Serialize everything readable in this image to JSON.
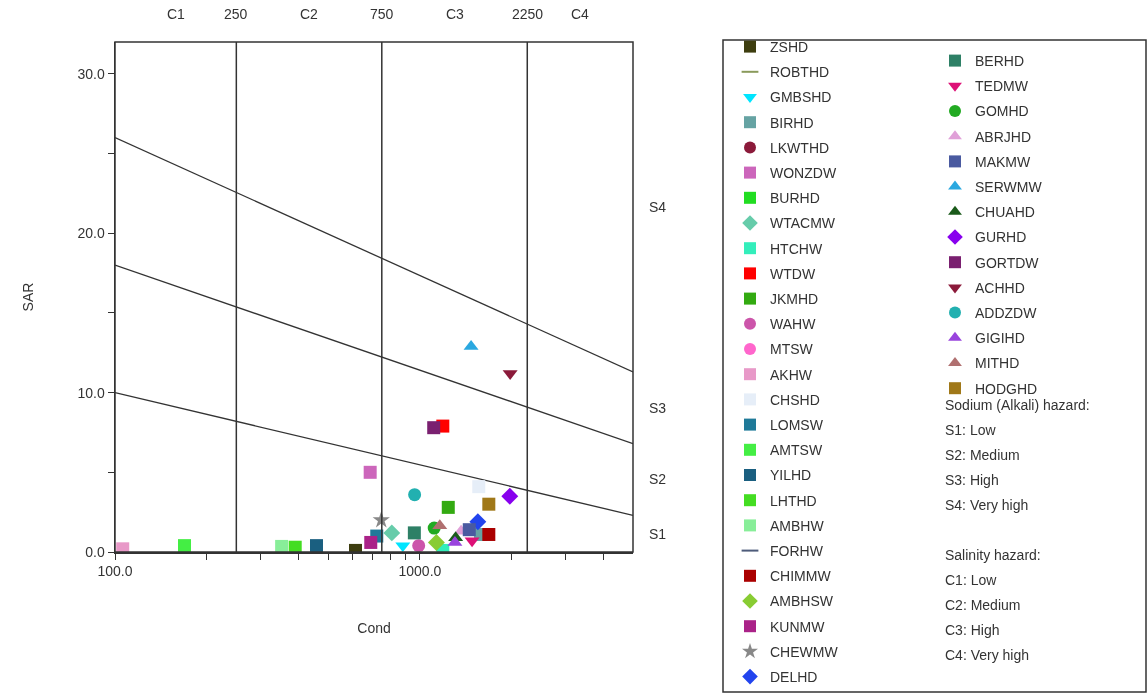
{
  "chart_data": {
    "type": "scatter",
    "xlabel": "Cond",
    "ylabel": "SAR",
    "log": "x",
    "legend": "right",
    "grid": false,
    "xlim": [
      100,
      5000
    ],
    "ylim": [
      0,
      32
    ],
    "xticks": [
      {
        "value": 100,
        "label": "100.0"
      },
      {
        "value": 200,
        "label": null
      },
      {
        "value": 300,
        "label": null
      },
      {
        "value": 400,
        "label": null
      },
      {
        "value": 500,
        "label": null
      },
      {
        "value": 600,
        "label": null
      },
      {
        "value": 700,
        "label": null
      },
      {
        "value": 800,
        "label": null
      },
      {
        "value": 900,
        "label": null
      },
      {
        "value": 1000,
        "label": "1000.0"
      },
      {
        "value": 2000,
        "label": null
      },
      {
        "value": 3000,
        "label": null
      },
      {
        "value": 4000,
        "label": null
      }
    ],
    "yticks": [
      {
        "value": 0,
        "label": "0.0"
      },
      {
        "value": 5,
        "label": null
      },
      {
        "value": 10,
        "label": "10.0"
      },
      {
        "value": 15,
        "label": null
      },
      {
        "value": 20,
        "label": "20.0"
      },
      {
        "value": 25,
        "label": null
      },
      {
        "value": 30,
        "label": "30.0"
      }
    ],
    "ref_lines": [
      {
        "axis": "x",
        "value": 250,
        "label": "250",
        "color": "#333333"
      },
      {
        "axis": "x",
        "value": 750,
        "label": "750",
        "color": "#333333"
      },
      {
        "axis": "x",
        "value": 2250,
        "label": "2250",
        "color": "#333333"
      }
    ],
    "annotations": [
      "C1",
      "C2",
      "C3",
      "C4",
      "S1",
      "S2",
      "S3",
      "S4",
      "Sodium (Alkali) hazard:",
      "S1: Low",
      "S2: Medium",
      "S3: High",
      "S4: Very high",
      "Salinity hazard:",
      "C1: Low",
      "C2: Medium",
      "C3: High",
      "C4: Very high"
    ],
    "series": [
      {
        "type": "line",
        "color": "#333333",
        "x": [
          100,
          5000
        ],
        "values": [
          10,
          2.3
        ]
      },
      {
        "type": "line",
        "color": "#333333",
        "x": [
          100,
          5000
        ],
        "values": [
          18,
          6.8
        ]
      },
      {
        "type": "line",
        "color": "#333333",
        "x": [
          100,
          5000
        ],
        "values": [
          26,
          11.3
        ]
      },
      {
        "name": "ZSHD",
        "color": "#3d3d0f",
        "marker": "square",
        "x": [
          615
        ],
        "values": [
          0.1
        ]
      },
      {
        "name": "ROBTHD",
        "color": "#8a9a5b",
        "marker": "dash",
        "x": [
          null
        ],
        "values": [
          null
        ]
      },
      {
        "name": "GMBSHD",
        "color": "#00e5ff",
        "marker": "triangle-down",
        "x": [
          879
        ],
        "values": [
          0.4
        ]
      },
      {
        "name": "BIRHD",
        "color": "#66a3a3",
        "marker": "square",
        "x": [
          1580
        ],
        "values": [
          1.1
        ]
      },
      {
        "name": "LKWTHD",
        "color": "#8b1a3a",
        "marker": "circle",
        "x": [
          null
        ],
        "values": [
          null
        ]
      },
      {
        "name": "WONZDW",
        "color": "#cc66bb",
        "marker": "square",
        "x": [
          687
        ],
        "values": [
          5
        ]
      },
      {
        "name": "BURHD",
        "color": "#22dd22",
        "marker": "square",
        "x": [
          null
        ],
        "values": [
          null
        ]
      },
      {
        "name": "WTACMW",
        "color": "#66ccaa",
        "marker": "diamond",
        "x": [
          809
        ],
        "values": [
          1.2
        ]
      },
      {
        "name": "HTCHW",
        "color": "#33eebb",
        "marker": "square",
        "x": [
          1189
        ],
        "values": [
          0.1
        ]
      },
      {
        "name": "WTDW",
        "color": "#ff0000",
        "marker": "square",
        "x": [
          1189
        ],
        "values": [
          7.9
        ]
      },
      {
        "name": "JKMHD",
        "color": "#33aa11",
        "marker": "square",
        "x": [
          1239
        ],
        "values": [
          2.8
        ]
      },
      {
        "name": "WAHW",
        "color": "#cc55aa",
        "marker": "circle",
        "x": [
          991
        ],
        "values": [
          0.4
        ]
      },
      {
        "name": "MTSW",
        "color": "#ff66cc",
        "marker": "circle",
        "x": [
          null
        ],
        "values": [
          null
        ]
      },
      {
        "name": "AKHW",
        "color": "#e899c8",
        "marker": "square",
        "x": [
          106
        ],
        "values": [
          0.2
        ]
      },
      {
        "name": "CHSHD",
        "color": "#e6eef8",
        "marker": "square",
        "x": [
          1560
        ],
        "values": [
          4.1
        ]
      },
      {
        "name": "LOMSW",
        "color": "#1f7a99",
        "marker": "square",
        "x": [
          722
        ],
        "values": [
          1
        ]
      },
      {
        "name": "AMTSW",
        "color": "#44ee44",
        "marker": "square",
        "x": [
          169
        ],
        "values": [
          0.4
        ]
      },
      {
        "name": "YILHD",
        "color": "#1a5f80",
        "marker": "square",
        "x": [
          458
        ],
        "values": [
          0.4
        ]
      },
      {
        "name": "LHTHD",
        "color": "#44dd22",
        "marker": "square",
        "x": [
          390
        ],
        "values": [
          0.3
        ]
      },
      {
        "name": "AMBHW",
        "color": "#88ee99",
        "marker": "square",
        "x": [
          352
        ],
        "values": [
          0.35
        ]
      },
      {
        "name": "FORHW",
        "color": "#4d5b7a",
        "marker": "dash",
        "x": [
          null
        ],
        "values": [
          null
        ]
      },
      {
        "name": "CHIMMW",
        "color": "#aa0000",
        "marker": "square",
        "x": [
          1683
        ],
        "values": [
          1.1
        ]
      },
      {
        "name": "AMBHSW",
        "color": "#88cc33",
        "marker": "diamond",
        "x": [
          1133
        ],
        "values": [
          0.6
        ]
      },
      {
        "name": "KUNMW",
        "color": "#aa2288",
        "marker": "square",
        "x": [
          690
        ],
        "values": [
          0.6
        ]
      },
      {
        "name": "CHEWMW",
        "color": "#888888",
        "marker": "star",
        "x": [
          747
        ],
        "values": [
          2
        ]
      },
      {
        "name": "DELHD",
        "color": "#2244ee",
        "marker": "diamond",
        "x": [
          1549
        ],
        "values": [
          1.9
        ]
      },
      {
        "name": "BERHD",
        "color": "#2e8066",
        "marker": "square",
        "x": [
          959
        ],
        "values": [
          1.2
        ]
      },
      {
        "name": "TEDMW",
        "color": "#dd1177",
        "marker": "triangle-down",
        "x": [
          1483
        ],
        "values": [
          0.7
        ]
      },
      {
        "name": "GOMHD",
        "color": "#22aa22",
        "marker": "circle",
        "x": [
          1114
        ],
        "values": [
          1.5
        ]
      },
      {
        "name": "ABRJHD",
        "color": "#e0a0d8",
        "marker": "triangle",
        "x": [
          1365
        ],
        "values": [
          1.3
        ]
      },
      {
        "name": "MAKMW",
        "color": "#4a5aa0",
        "marker": "square",
        "x": [
          1452
        ],
        "values": [
          1.4
        ]
      },
      {
        "name": "SERWMW",
        "color": "#2aa8e0",
        "marker": "triangle",
        "x": [
          1472
        ],
        "values": [
          12.9
        ]
      },
      {
        "name": "CHUAHD",
        "color": "#1a5a1a",
        "marker": "triangle",
        "x": [
          1310
        ],
        "values": [
          0.9
        ]
      },
      {
        "name": "GURHD",
        "color": "#8800ee",
        "marker": "diamond",
        "x": [
          1972
        ],
        "values": [
          3.5
        ]
      },
      {
        "name": "GORTDW",
        "color": "#7a2070",
        "marker": "square",
        "x": [
          1110
        ],
        "values": [
          7.8
        ]
      },
      {
        "name": "ACHHD",
        "color": "#8b1a3a",
        "marker": "triangle-down",
        "x": [
          1977
        ],
        "values": [
          11.2
        ]
      },
      {
        "name": "ADDZDW",
        "color": "#22b0b0",
        "marker": "circle",
        "x": [
          961
        ],
        "values": [
          3.6
        ]
      },
      {
        "name": "GIGIHD",
        "color": "#9944dd",
        "marker": "triangle",
        "x": [
          1303
        ],
        "values": [
          0.6
        ]
      },
      {
        "name": "MITHD",
        "color": "#b07070",
        "marker": "triangle",
        "x": [
          1162
        ],
        "values": [
          1.65
        ]
      },
      {
        "name": "HODGHD",
        "color": "#a07818",
        "marker": "square",
        "x": [
          1683
        ],
        "values": [
          3
        ]
      }
    ]
  }
}
